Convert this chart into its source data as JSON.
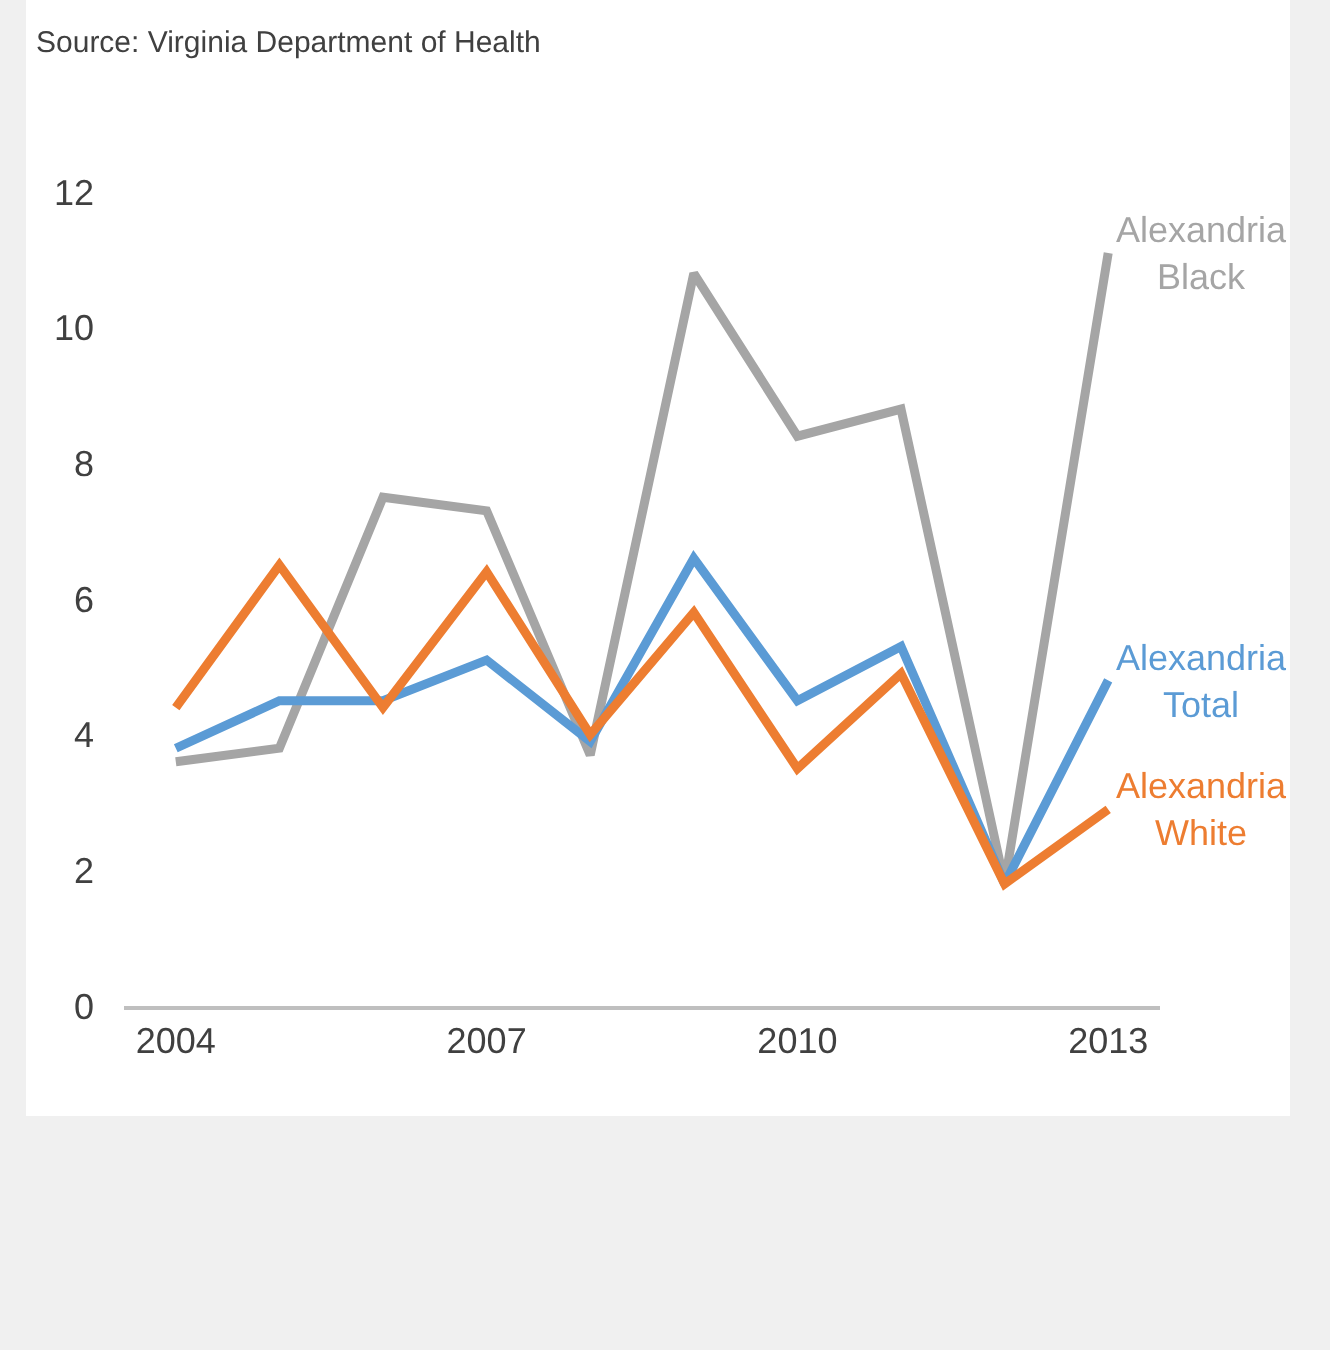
{
  "chart_data": {
    "type": "line",
    "x": [
      2004,
      2005,
      2006,
      2007,
      2008,
      2009,
      2010,
      2011,
      2012,
      2013
    ],
    "series": [
      {
        "name": "Alexandria Black",
        "color": "#a5a5a5",
        "values": [
          3.6,
          3.8,
          7.5,
          7.3,
          3.7,
          10.8,
          8.4,
          8.8,
          1.8,
          11.1
        ]
      },
      {
        "name": "Alexandria Total",
        "color": "#5b9bd5",
        "values": [
          3.8,
          4.5,
          4.5,
          5.1,
          3.9,
          6.6,
          4.5,
          5.3,
          1.8,
          4.8
        ]
      },
      {
        "name": "Alexandria White",
        "color": "#ed7d31",
        "values": [
          4.4,
          6.5,
          4.4,
          6.4,
          4.0,
          5.8,
          3.5,
          4.9,
          1.8,
          2.9
        ]
      }
    ],
    "xlim": [
      2003.5,
      2013.5
    ],
    "xticks": [
      2004,
      2007,
      2010,
      2013
    ],
    "ylim": [
      0,
      12
    ],
    "yticks": [
      0,
      2,
      4,
      6,
      8,
      10,
      12
    ],
    "grid": false,
    "legend": false,
    "marker": "none",
    "line_style": "solid",
    "annotations": [
      "Source: Virginia Department of Health"
    ]
  }
}
